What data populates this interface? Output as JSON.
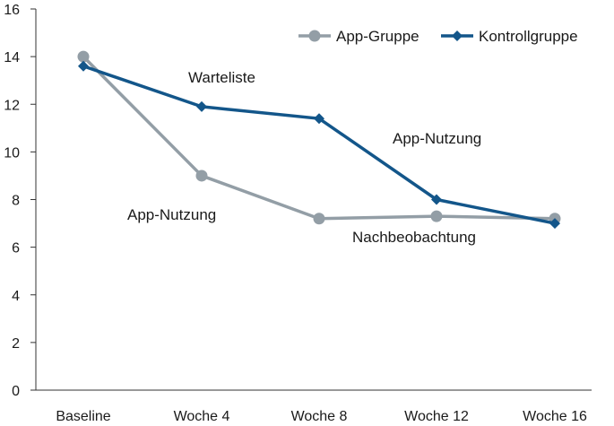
{
  "chart_data": {
    "type": "line",
    "categories": [
      "Baseline",
      "Woche 4",
      "Woche 8",
      "Woche 12",
      "Woche 16"
    ],
    "ylim": [
      0,
      16
    ],
    "yticks": [
      0,
      2,
      4,
      6,
      8,
      10,
      12,
      14,
      16
    ],
    "grid": false,
    "legend_position": "top-right",
    "series": [
      {
        "name": "App-Gruppe",
        "values": [
          14.0,
          9.0,
          7.2,
          7.3,
          7.2
        ],
        "color": "#939ea6",
        "marker": "circle"
      },
      {
        "name": "Kontrollgruppe",
        "values": [
          13.6,
          11.9,
          11.4,
          8.0,
          7.0
        ],
        "color": "#13568a",
        "marker": "diamond"
      }
    ],
    "annotations": [
      {
        "text": "Warteliste"
      },
      {
        "text": "App-Nutzung"
      },
      {
        "text": "App-Nutzung"
      },
      {
        "text": "Nachbeobachtung"
      }
    ]
  }
}
